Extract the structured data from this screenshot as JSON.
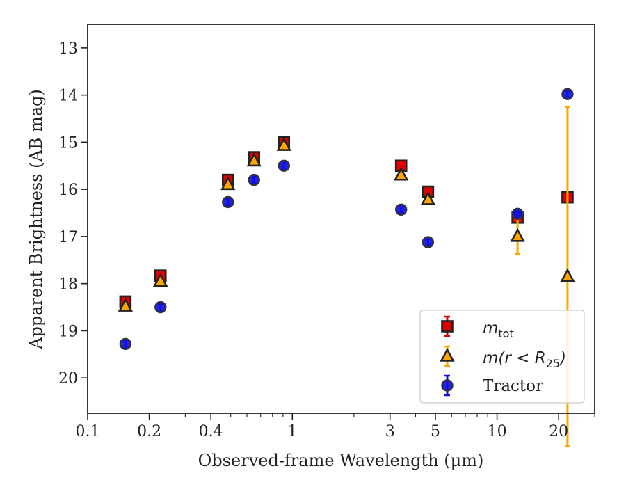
{
  "chart_data": {
    "type": "scatter",
    "xlabel": "Observed-frame Wavelength (μm)",
    "ylabel": "Apparent Brightness (AB mag)",
    "xscale": "log",
    "xlim": [
      0.1,
      30
    ],
    "ylim": [
      20.75,
      12.5
    ],
    "y_inverted": true,
    "xticks": [
      0.1,
      0.2,
      0.4,
      1,
      3,
      5,
      10,
      20
    ],
    "xtick_labels": [
      "0.1",
      "0.2",
      "0.4",
      "1",
      "3",
      "5",
      "10",
      "20"
    ],
    "yticks": [
      13,
      14,
      15,
      16,
      17,
      18,
      19,
      20
    ],
    "ytick_labels": [
      "13",
      "14",
      "15",
      "16",
      "17",
      "18",
      "19",
      "20"
    ],
    "grid": false,
    "legend_position": "lower-right",
    "series": [
      {
        "name": "m_tot",
        "legend_main": "m",
        "legend_sub": "tot",
        "marker": "square",
        "color": "#e00000",
        "errcolor": "#e00000",
        "x": [
          0.153,
          0.227,
          0.485,
          0.65,
          0.91,
          3.4,
          4.6,
          12.6,
          22.1
        ],
        "y": [
          18.38,
          17.83,
          15.8,
          15.32,
          15.0,
          15.5,
          16.05,
          16.6,
          16.17
        ],
        "yerr": [
          0.05,
          0.05,
          0.05,
          0.05,
          0.05,
          0.05,
          0.05,
          0.07,
          0.03
        ]
      },
      {
        "name": "m(r < R_25)",
        "legend_main": "m(r < R",
        "legend_sub": "25",
        "legend_tail": ")",
        "marker": "triangle",
        "color": "#ffa500",
        "errcolor": "#ffa500",
        "x": [
          0.153,
          0.227,
          0.485,
          0.65,
          0.91,
          3.4,
          4.6,
          12.6,
          22.1
        ],
        "y": [
          18.48,
          17.95,
          15.9,
          15.4,
          15.07,
          15.7,
          16.22,
          17.0,
          17.85
        ],
        "yerr": [
          0.05,
          0.05,
          0.05,
          0.05,
          0.05,
          0.05,
          0.05,
          0.37,
          3.6
        ]
      },
      {
        "name": "Tractor",
        "legend_main": "Tractor",
        "marker": "circle",
        "color": "#1010e0",
        "errcolor": "#1010e0",
        "x": [
          0.153,
          0.227,
          0.485,
          0.65,
          0.91,
          3.4,
          4.6,
          12.6,
          22.1
        ],
        "y": [
          19.28,
          18.5,
          16.27,
          15.8,
          15.5,
          16.43,
          17.12,
          16.52,
          13.98
        ],
        "yerr": [
          0.08,
          0.07,
          0.06,
          0.06,
          0.06,
          0.06,
          0.06,
          0.06,
          0.06
        ]
      }
    ]
  }
}
